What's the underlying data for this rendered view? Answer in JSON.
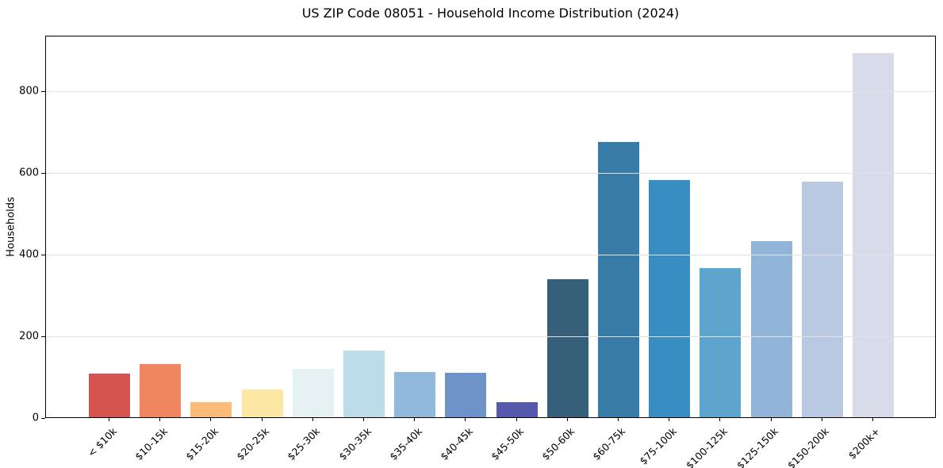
{
  "chart_data": {
    "type": "bar",
    "title": "US ZIP Code 08051 - Household Income Distribution (2024)",
    "xlabel": "",
    "ylabel": "Households",
    "categories": [
      "< $10k",
      "$10-15k",
      "$15-20k",
      "$20-25k",
      "$25-30k",
      "$30-35k",
      "$35-40k",
      "$40-45k",
      "$45-50k",
      "$50-60k",
      "$60-75k",
      "$75-100k",
      "$100-125k",
      "$125-150k",
      "$150-200k",
      "$200k+"
    ],
    "values": [
      107,
      130,
      37,
      68,
      118,
      163,
      111,
      109,
      37,
      338,
      673,
      581,
      365,
      430,
      577,
      890
    ],
    "bar_colors": [
      "#d6544f",
      "#f08661",
      "#fabc78",
      "#fce8a4",
      "#e5f1f3",
      "#bcdcea",
      "#90b9db",
      "#6d93c8",
      "#5559ab",
      "#36607a",
      "#377ba6",
      "#388dc2",
      "#5da5cc",
      "#90b5d9",
      "#b9c9e1",
      "#d8dbe9"
    ],
    "yticks": [
      0,
      200,
      400,
      600,
      800
    ],
    "ylim": [
      0,
      935
    ],
    "x_tick_rotation": 45,
    "grid": "horizontal-only",
    "legend": "none",
    "grid_color": "#e2e2e2",
    "axis_color": "#000000",
    "text_color": "#000000",
    "background_color": "#ffffff"
  }
}
